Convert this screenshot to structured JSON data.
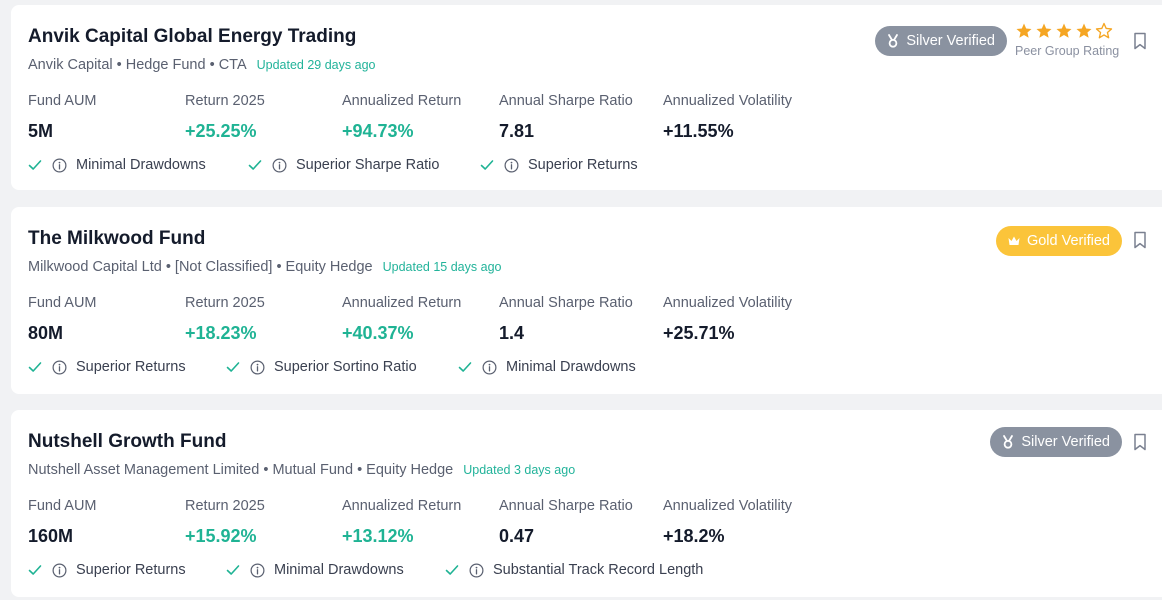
{
  "colors": {
    "accent_green": "#1fb394",
    "silver": "#8a92a0",
    "gold": "#fbc43a",
    "star": "#f5a623"
  },
  "cards": [
    {
      "title": "Anvik Capital Global Energy Trading",
      "subtitle": "Anvik Capital • Hedge Fund • CTA",
      "updated": "Updated 29 days ago",
      "badge": {
        "label": "Silver Verified",
        "tier": "silver",
        "icon": "medal-icon"
      },
      "rating": {
        "stars": 4,
        "max": 5,
        "label": "Peer Group Rating"
      },
      "metrics": [
        {
          "label": "Fund AUM",
          "value": "5M"
        },
        {
          "label": "Return 2025",
          "value": "+25.25%"
        },
        {
          "label": "Annualized Return",
          "value": "+94.73%"
        },
        {
          "label": "Annual Sharpe Ratio",
          "value": "7.81"
        },
        {
          "label": "Annualized Volatility",
          "value": "+11.55%"
        }
      ],
      "tags": [
        "Minimal Drawdowns",
        "Superior Sharpe Ratio",
        "Superior Returns"
      ]
    },
    {
      "title": "The Milkwood Fund",
      "subtitle": "Milkwood Capital Ltd • [Not Classified] • Equity Hedge",
      "updated": "Updated 15 days ago",
      "badge": {
        "label": "Gold Verified",
        "tier": "gold",
        "icon": "crown-icon"
      },
      "metrics": [
        {
          "label": "Fund AUM",
          "value": "80M"
        },
        {
          "label": "Return 2025",
          "value": "+18.23%"
        },
        {
          "label": "Annualized Return",
          "value": "+40.37%"
        },
        {
          "label": "Annual Sharpe Ratio",
          "value": "1.4"
        },
        {
          "label": "Annualized Volatility",
          "value": "+25.71%"
        }
      ],
      "tags": [
        "Superior Returns",
        "Superior Sortino Ratio",
        "Minimal Drawdowns"
      ]
    },
    {
      "title": "Nutshell Growth Fund",
      "subtitle": "Nutshell Asset Management Limited • Mutual Fund • Equity Hedge",
      "updated": "Updated 3 days ago",
      "badge": {
        "label": "Silver Verified",
        "tier": "silver",
        "icon": "medal-icon"
      },
      "metrics": [
        {
          "label": "Fund AUM",
          "value": "160M"
        },
        {
          "label": "Return 2025",
          "value": "+15.92%"
        },
        {
          "label": "Annualized Return",
          "value": "+13.12%"
        },
        {
          "label": "Annual Sharpe Ratio",
          "value": "0.47"
        },
        {
          "label": "Annualized Volatility",
          "value": "+18.2%"
        }
      ],
      "tags": [
        "Superior Returns",
        "Minimal Drawdowns",
        "Substantial Track Record Length"
      ]
    }
  ]
}
